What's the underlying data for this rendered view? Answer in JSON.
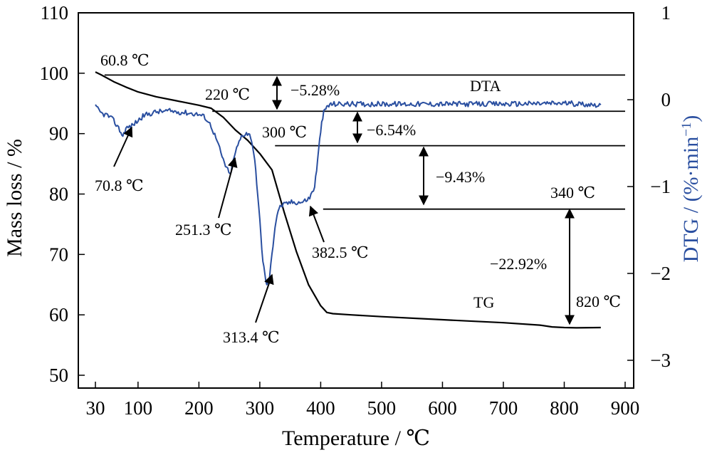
{
  "chart_data": {
    "type": "line",
    "xlabel": "Temperature / ℃",
    "ylabel_left": "Mass loss / %",
    "ylabel_right": "DTG / (%·min",
    "ylabel_right_sup": "−1",
    "ylabel_right_close": ")",
    "xlim": [
      30,
      900
    ],
    "ylim_left": [
      47,
      110
    ],
    "ylim_right": [
      -3.2,
      1
    ],
    "x_ticks": [
      30,
      100,
      200,
      300,
      400,
      500,
      600,
      700,
      800,
      900
    ],
    "x_tick_labels": [
      "30",
      "100",
      "200",
      "300",
      "400",
      "500",
      "600",
      "700",
      "800",
      "900"
    ],
    "y_left_ticks": [
      50,
      60,
      70,
      80,
      90,
      100,
      110
    ],
    "y_left_tick_labels": [
      "50",
      "60",
      "70",
      "80",
      "90",
      "100",
      "110"
    ],
    "y_right_ticks": [
      1,
      0,
      -1,
      -2,
      -3
    ],
    "y_right_tick_labels": [
      "1",
      "0",
      "−1",
      "−2",
      "−3"
    ],
    "colors": {
      "tg": "#000000",
      "dtg": "#2a4fa0",
      "frame": "#000000"
    },
    "series": [
      {
        "name": "TG",
        "axis": "left",
        "x": [
          30,
          40,
          60,
          80,
          100,
          130,
          160,
          200,
          220,
          240,
          260,
          280,
          300,
          320,
          340,
          360,
          380,
          400,
          410,
          420,
          450,
          500,
          600,
          700,
          760,
          780,
          800,
          820,
          860
        ],
        "y": [
          100.2,
          99.7,
          98.6,
          97.7,
          96.9,
          96.1,
          95.5,
          94.7,
          94.2,
          92.7,
          90.6,
          88.9,
          86.7,
          84.0,
          77.0,
          70.5,
          65.0,
          61.5,
          60.4,
          60.2,
          60.0,
          59.7,
          59.2,
          58.7,
          58.3,
          58.0,
          57.9,
          57.85,
          57.9
        ]
      },
      {
        "name": "DTA",
        "axis": "right",
        "x": [
          30,
          40,
          50,
          60,
          70,
          75,
          80,
          90,
          100,
          110,
          130,
          150,
          180,
          200,
          210,
          220,
          230,
          240,
          251,
          260,
          270,
          278,
          285,
          290,
          295,
          300,
          305,
          310,
          313,
          316,
          320,
          325,
          330,
          335,
          340,
          350,
          370,
          382,
          390,
          395,
          400,
          405,
          410,
          415,
          420,
          440,
          500,
          600,
          700,
          800,
          860
        ],
        "y": [
          -0.08,
          -0.16,
          -0.18,
          -0.24,
          -0.35,
          -0.42,
          -0.33,
          -0.3,
          -0.24,
          -0.18,
          -0.14,
          -0.13,
          -0.15,
          -0.17,
          -0.2,
          -0.3,
          -0.48,
          -0.7,
          -0.87,
          -0.6,
          -0.42,
          -0.38,
          -0.42,
          -0.6,
          -0.95,
          -1.4,
          -1.85,
          -2.1,
          -2.13,
          -2.05,
          -1.78,
          -1.45,
          -1.27,
          -1.22,
          -1.21,
          -1.18,
          -1.18,
          -1.13,
          -1.0,
          -0.7,
          -0.35,
          -0.15,
          -0.08,
          -0.06,
          -0.05,
          -0.05,
          -0.05,
          -0.05,
          -0.05,
          -0.04,
          -0.06
        ]
      }
    ],
    "reference_lines_pct": [
      99.7,
      93.7,
      88.0,
      77.5
    ],
    "annotations": [
      {
        "id": "t60",
        "text": "60.8 ℃"
      },
      {
        "id": "t220",
        "text": "220 ℃"
      },
      {
        "id": "p528",
        "text": "−5.28%"
      },
      {
        "id": "dta",
        "text": "DTA"
      },
      {
        "id": "t300",
        "text": "300 ℃"
      },
      {
        "id": "p654",
        "text": "−6.54%"
      },
      {
        "id": "t708",
        "text": "70.8 ℃"
      },
      {
        "id": "p943",
        "text": "−9.43%"
      },
      {
        "id": "t340",
        "text": "340 ℃"
      },
      {
        "id": "t2513",
        "text": "251.3 ℃"
      },
      {
        "id": "t3825",
        "text": "382.5 ℃"
      },
      {
        "id": "p2292",
        "text": "−22.92%"
      },
      {
        "id": "tg",
        "text": "TG"
      },
      {
        "id": "t820",
        "text": "820 ℃"
      },
      {
        "id": "t3134",
        "text": "313.4 ℃"
      }
    ]
  }
}
